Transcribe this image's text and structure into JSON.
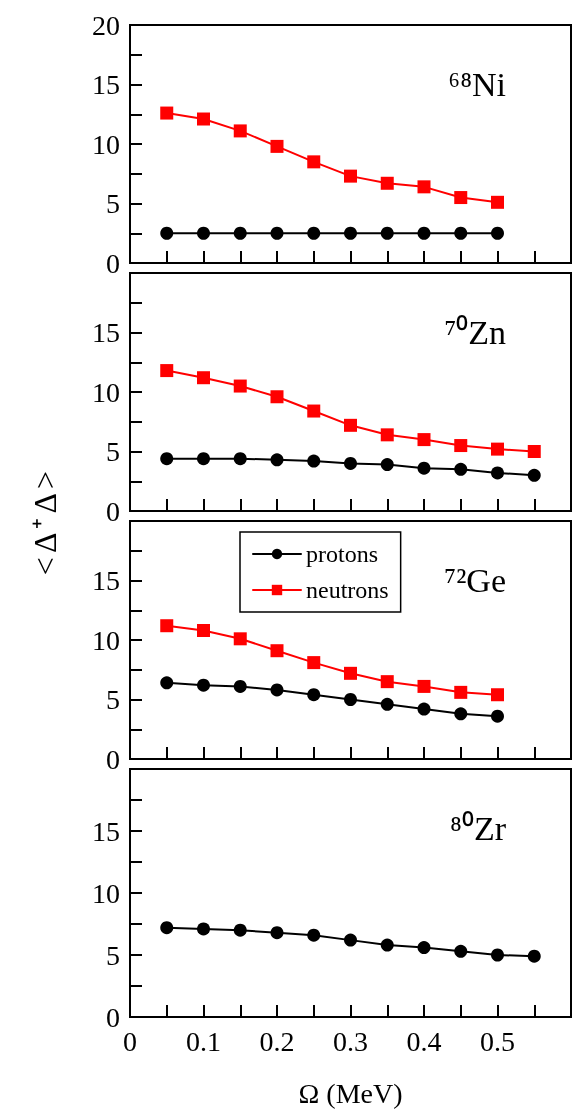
{
  "chart_data": [
    {
      "type": "line",
      "annotations": [
        "⁶⁸Ni"
      ],
      "x": [
        0.05,
        0.1,
        0.15,
        0.2,
        0.25,
        0.3,
        0.35,
        0.4,
        0.45,
        0.5
      ],
      "xlim": [
        0,
        0.6
      ],
      "xticks": [
        0,
        {
          "value": 0.05,
          "label": null
        },
        0.1,
        {
          "value": 0.15,
          "label": null
        },
        0.2,
        {
          "value": 0.25,
          "label": null
        },
        0.3,
        {
          "value": 0.35,
          "label": null
        },
        0.4,
        {
          "value": 0.45,
          "label": null
        },
        0.5,
        {
          "value": 0.55,
          "label": null
        }
      ],
      "ylim": [
        0,
        20
      ],
      "yticks": [
        0,
        {
          "value": 2.5,
          "label": null
        },
        5,
        {
          "value": 7.5,
          "label": null
        },
        10,
        {
          "value": 12.5,
          "label": null
        },
        15,
        {
          "value": 17.5,
          "label": null
        },
        20
      ],
      "tick_labels": "y",
      "grid": false,
      "line_style": "solid",
      "series": [
        {
          "color": "#000000",
          "marker": "circle",
          "values": [
            2.5,
            2.5,
            2.5,
            2.5,
            2.5,
            2.5,
            2.5,
            2.5,
            2.5,
            2.5
          ]
        },
        {
          "color": "#ff0000",
          "marker": "square",
          "values": [
            12.6,
            12.1,
            11.1,
            9.8,
            8.5,
            7.3,
            6.7,
            6.4,
            5.5,
            5.1
          ]
        }
      ]
    },
    {
      "type": "line",
      "annotations": [
        "⁷⁰Zn"
      ],
      "ylabel": "<Δ⁺Δ>",
      "x": [
        0.05,
        0.1,
        0.15,
        0.2,
        0.25,
        0.3,
        0.35,
        0.4,
        0.45,
        0.5,
        0.55
      ],
      "xlim": [
        0,
        0.6
      ],
      "xticks": [
        0,
        {
          "value": 0.05,
          "label": null
        },
        0.1,
        {
          "value": 0.15,
          "label": null
        },
        0.2,
        {
          "value": 0.25,
          "label": null
        },
        0.3,
        {
          "value": 0.35,
          "label": null
        },
        0.4,
        {
          "value": 0.45,
          "label": null
        },
        0.5,
        {
          "value": 0.55,
          "label": null
        }
      ],
      "ylim": [
        0,
        20
      ],
      "yticks": [
        0,
        {
          "value": 2.5,
          "label": null
        },
        5,
        {
          "value": 7.5,
          "label": null
        },
        10,
        {
          "value": 12.5,
          "label": null
        },
        15,
        {
          "value": 17.5,
          "label": null
        },
        {
          "value": 20,
          "label": null
        }
      ],
      "tick_labels": "y",
      "grid": false,
      "line_style": "solid",
      "series": [
        {
          "color": "#000000",
          "marker": "circle",
          "values": [
            4.4,
            4.4,
            4.4,
            4.3,
            4.2,
            4.0,
            3.9,
            3.6,
            3.5,
            3.2,
            3.0
          ]
        },
        {
          "color": "#ff0000",
          "marker": "square",
          "values": [
            11.8,
            11.2,
            10.5,
            9.6,
            8.4,
            7.2,
            6.4,
            6.0,
            5.5,
            5.2,
            5.0
          ]
        }
      ]
    },
    {
      "type": "line",
      "annotations": [
        "⁷²Ge"
      ],
      "x": [
        0.05,
        0.1,
        0.15,
        0.2,
        0.25,
        0.3,
        0.35,
        0.4,
        0.45,
        0.5
      ],
      "xlim": [
        0,
        0.6
      ],
      "xticks": [
        0,
        {
          "value": 0.05,
          "label": null
        },
        0.1,
        {
          "value": 0.15,
          "label": null
        },
        0.2,
        {
          "value": 0.25,
          "label": null
        },
        0.3,
        {
          "value": 0.35,
          "label": null
        },
        0.4,
        {
          "value": 0.45,
          "label": null
        },
        0.5,
        {
          "value": 0.55,
          "label": null
        }
      ],
      "ylim": [
        0,
        20
      ],
      "yticks": [
        0,
        {
          "value": 2.5,
          "label": null
        },
        5,
        {
          "value": 7.5,
          "label": null
        },
        10,
        {
          "value": 12.5,
          "label": null
        },
        15,
        {
          "value": 17.5,
          "label": null
        },
        {
          "value": 20,
          "label": null
        }
      ],
      "tick_labels": "y",
      "grid": false,
      "line_style": "solid",
      "legend": "top",
      "series": [
        {
          "name": "protons",
          "color": "#000000",
          "marker": "circle",
          "values": [
            6.4,
            6.2,
            6.1,
            5.8,
            5.4,
            5.0,
            4.6,
            4.2,
            3.8,
            3.6
          ]
        },
        {
          "name": "neutrons",
          "color": "#ff0000",
          "marker": "square",
          "values": [
            11.2,
            10.8,
            10.1,
            9.1,
            8.1,
            7.2,
            6.5,
            6.1,
            5.6,
            5.4
          ]
        }
      ]
    },
    {
      "type": "line",
      "annotations": [
        "⁸⁰Zr"
      ],
      "xlabel": "Ω (MeV)",
      "x": [
        0.05,
        0.1,
        0.15,
        0.2,
        0.25,
        0.3,
        0.35,
        0.4,
        0.45,
        0.5,
        0.55
      ],
      "xlim": [
        0,
        0.6
      ],
      "xticks": [
        0,
        {
          "value": 0.05,
          "label": null
        },
        0.1,
        {
          "value": 0.15,
          "label": null
        },
        0.2,
        {
          "value": 0.25,
          "label": null
        },
        0.3,
        {
          "value": 0.35,
          "label": null
        },
        0.4,
        {
          "value": 0.45,
          "label": null
        },
        0.5,
        {
          "value": 0.55,
          "label": null
        }
      ],
      "ylim": [
        0,
        20
      ],
      "yticks": [
        0,
        {
          "value": 2.5,
          "label": null
        },
        5,
        {
          "value": 7.5,
          "label": null
        },
        10,
        {
          "value": 12.5,
          "label": null
        },
        15,
        {
          "value": 17.5,
          "label": null
        },
        {
          "value": 20,
          "label": null
        }
      ],
      "grid": false,
      "line_style": "solid",
      "series": [
        {
          "color": "#000000",
          "marker": "circle",
          "values": [
            7.2,
            7.1,
            7.0,
            6.8,
            6.6,
            6.2,
            5.8,
            5.6,
            5.3,
            5.0,
            4.9
          ]
        }
      ]
    }
  ]
}
